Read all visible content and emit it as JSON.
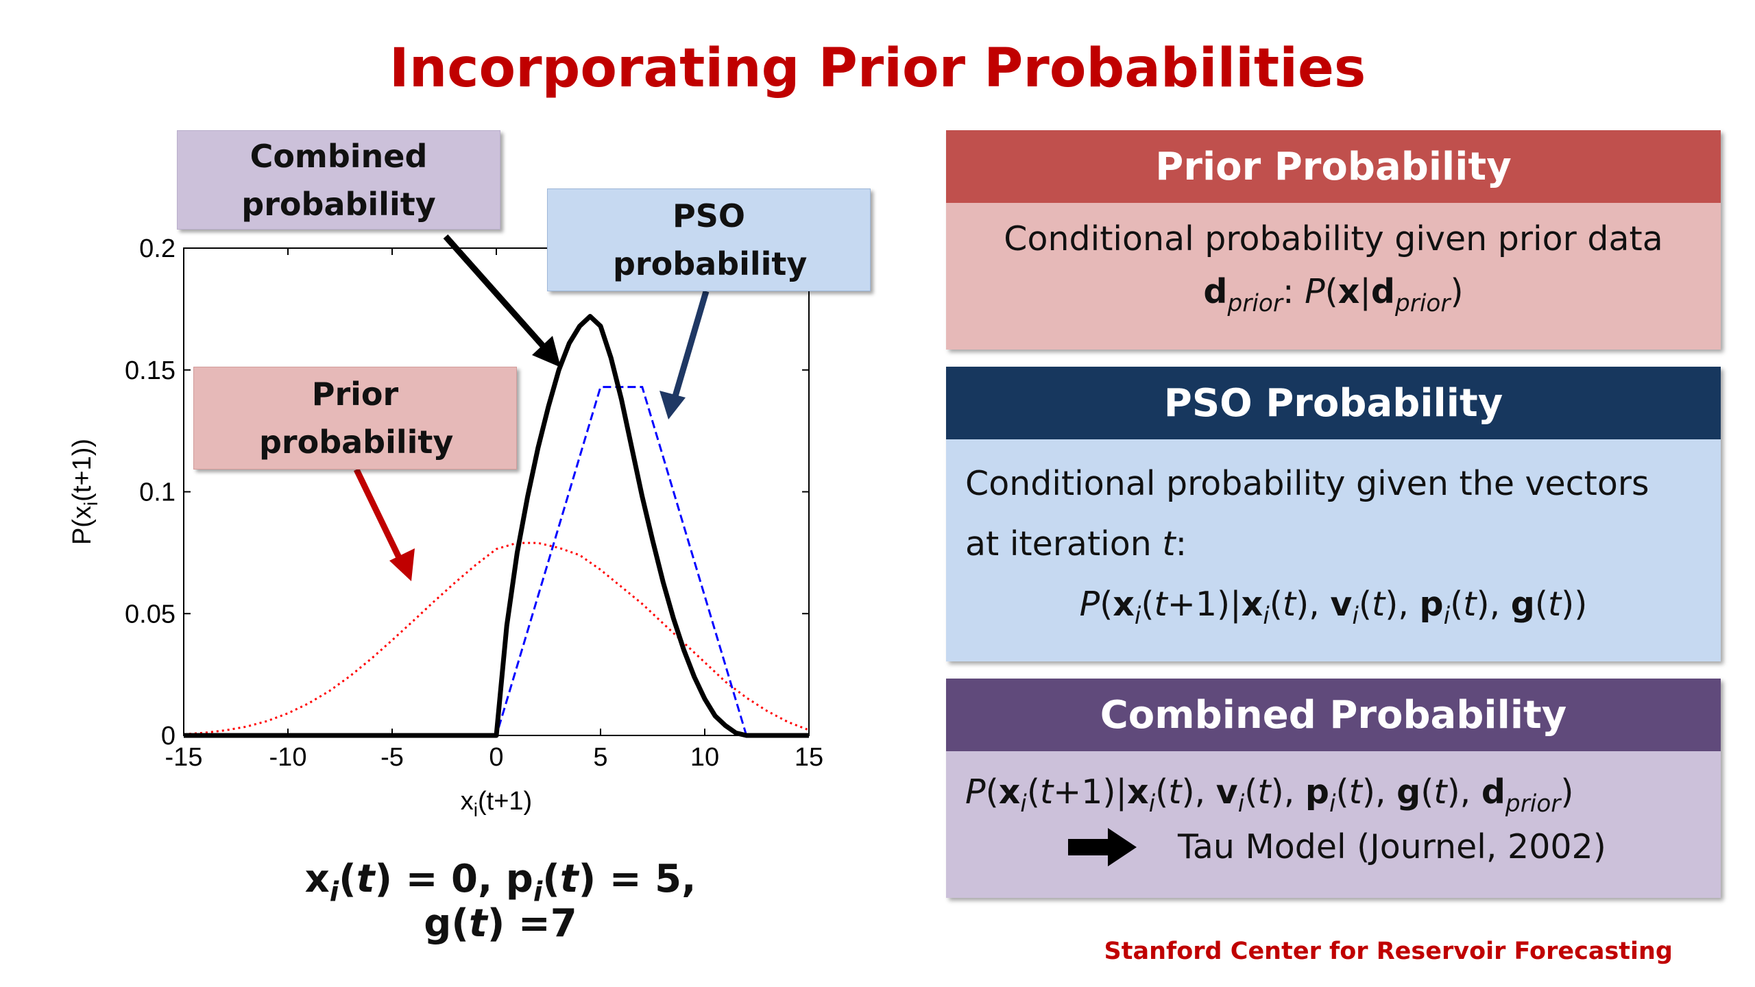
{
  "title": "Incorporating Prior Probabilities",
  "callouts": {
    "combined": "Combined probability",
    "pso": "PSO probability",
    "prior": "Prior probability"
  },
  "chart_data": {
    "type": "line",
    "xlabel": "x",
    "xlabel_sub": "i",
    "xlabel_suffix": "(t+1)",
    "ylabel": "P(x",
    "ylabel_sub": "i",
    "ylabel_suffix": "(t+1))",
    "xlim": [
      -15,
      15
    ],
    "ylim": [
      0,
      0.2
    ],
    "xticks": [
      "-15",
      "-10",
      "-5",
      "0",
      "5",
      "10",
      "15"
    ],
    "yticks": [
      "0",
      "0.05",
      "0.1",
      "0.15",
      "0.2"
    ],
    "grid": false,
    "series": [
      {
        "name": "Prior probability",
        "color": "#ff0000",
        "style": "dotted",
        "x": [
          -15,
          -14,
          -13,
          -12,
          -11,
          -10,
          -9,
          -8,
          -7,
          -6,
          -5,
          -4,
          -3,
          -2,
          -1,
          0,
          1,
          2,
          3,
          4,
          5,
          6,
          7,
          8,
          9,
          10,
          11,
          12,
          13,
          14,
          15
        ],
        "y": [
          0.0005,
          0.0011,
          0.0021,
          0.0036,
          0.0059,
          0.0091,
          0.0132,
          0.0183,
          0.0245,
          0.0315,
          0.0391,
          0.0469,
          0.0549,
          0.0626,
          0.0699,
          0.0765,
          0.079,
          0.079,
          0.077,
          0.074,
          0.068,
          0.061,
          0.054,
          0.046,
          0.038,
          0.03,
          0.022,
          0.0155,
          0.01,
          0.0055,
          0.0022
        ]
      },
      {
        "name": "PSO probability",
        "color": "#0000ff",
        "style": "dashed",
        "x": [
          -15,
          0,
          5,
          7,
          12,
          15
        ],
        "y": [
          0,
          0,
          0.143,
          0.143,
          0,
          0
        ]
      },
      {
        "name": "Combined probability",
        "color": "#000000",
        "style": "solid",
        "x": [
          -15,
          0,
          0.5,
          1,
          1.5,
          2,
          2.5,
          3,
          3.5,
          4,
          4.5,
          5,
          5.5,
          6,
          6.5,
          7,
          7.5,
          8,
          8.5,
          9,
          9.5,
          10,
          10.5,
          11,
          11.5,
          12,
          15
        ],
        "y": [
          0,
          0,
          0.045,
          0.075,
          0.098,
          0.118,
          0.135,
          0.15,
          0.161,
          0.168,
          0.172,
          0.168,
          0.155,
          0.138,
          0.118,
          0.098,
          0.08,
          0.063,
          0.048,
          0.035,
          0.024,
          0.015,
          0.008,
          0.004,
          0.001,
          0,
          0
        ]
      }
    ]
  },
  "params": {
    "x": "x",
    "x_sub": "i",
    "x_rest": "(",
    "t1": "t",
    "x_val": ") = 0, p",
    "p_sub": "i",
    "p_rest": "(",
    "t2": "t",
    "p_val": ") = 5, g(",
    "t3": "t",
    "g_val": ") =7"
  },
  "panels": {
    "prior": {
      "header": "Prior Probability",
      "header_color": "#c0504d",
      "body_color": "#e6b9b8",
      "line1": "Conditional probability given prior data",
      "d": "d",
      "d_sub": "prior",
      "colon": ":  ",
      "P": "P",
      "paren_x": "(",
      "x": "x",
      "bar": "|",
      "d2": "d",
      "d2_sub": "prior",
      "close": ")"
    },
    "pso": {
      "header": "PSO Probability",
      "header_color": "#17375e",
      "body_color": "#c6d9f1",
      "line1": "Conditional probability given the vectors",
      "line2a": "at iteration ",
      "line2t": "t",
      "line2b": ":",
      "eq": "P(xi(t+1)|xi(t), vi(t), pi(t), g(t))"
    },
    "combined": {
      "header": "Combined Probability",
      "header_color": "#604a7b",
      "body_color": "#ccc1da",
      "eq": "P(xi(t+1)|xi(t), vi(t), pi(t), g(t), dprior)",
      "arrow_text": "Tau Model (Journel, 2002)"
    }
  },
  "footer": "Stanford Center for Reservoir Forecasting"
}
